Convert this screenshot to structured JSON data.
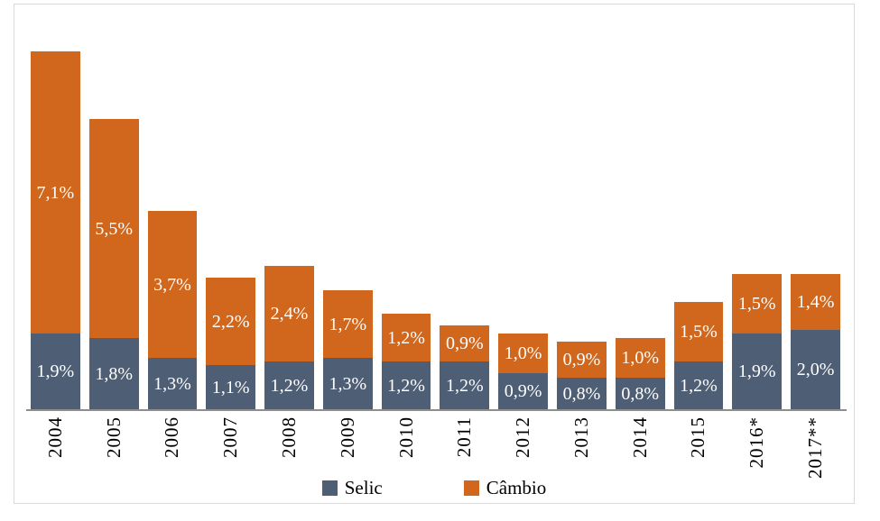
{
  "chart_data": {
    "type": "bar",
    "stacked": true,
    "title": "",
    "xlabel": "",
    "ylabel": "",
    "categories": [
      "2004",
      "2005",
      "2006",
      "2007",
      "2008",
      "2009",
      "2010",
      "2011",
      "2012",
      "2013",
      "2014",
      "2015",
      "2016*",
      "2017**"
    ],
    "series": [
      {
        "name": "Selic",
        "color": "#4E5E74",
        "values": [
          1.9,
          1.8,
          1.3,
          1.1,
          1.2,
          1.3,
          1.2,
          1.2,
          0.9,
          0.8,
          0.8,
          1.2,
          1.9,
          2.0
        ],
        "labels": [
          "1,9%",
          "1,8%",
          "1,3%",
          "1,1%",
          "1,2%",
          "1,3%",
          "1,2%",
          "1,2%",
          "0,9%",
          "0,8%",
          "0,8%",
          "1,2%",
          "1,9%",
          "2,0%"
        ]
      },
      {
        "name": "Câmbio",
        "color": "#D0671C",
        "values": [
          7.1,
          5.5,
          3.7,
          2.2,
          2.4,
          1.7,
          1.2,
          0.9,
          1.0,
          0.9,
          1.0,
          1.5,
          1.5,
          1.4
        ],
        "labels": [
          "7,1%",
          "5,5%",
          "3,7%",
          "2,2%",
          "2,4%",
          "1,7%",
          "1,2%",
          "0,9%",
          "1,0%",
          "0,9%",
          "1,0%",
          "1,5%",
          "1,5%",
          "1,4%"
        ]
      }
    ],
    "ylim": [
      0,
      10
    ],
    "grid": false,
    "legend_position": "bottom",
    "value_label_color": "#ffffff",
    "tick_label_color": "#000000"
  },
  "colors": {
    "background": "#ffffff",
    "chart_border": "#D9D9D9",
    "axis_line": "#8E8E8E"
  }
}
